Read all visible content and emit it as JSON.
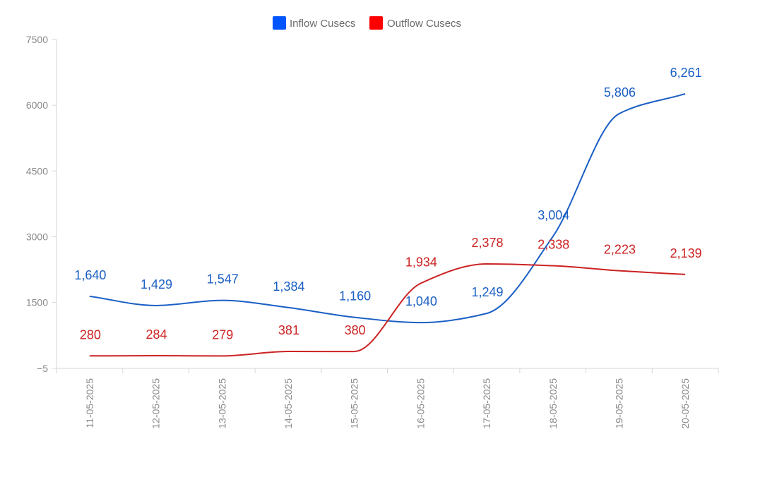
{
  "chart_data": {
    "type": "line",
    "categories": [
      "11-05-2025",
      "12-05-2025",
      "13-05-2025",
      "14-05-2025",
      "15-05-2025",
      "16-05-2025",
      "17-05-2025",
      "18-05-2025",
      "19-05-2025",
      "20-05-2025"
    ],
    "series": [
      {
        "name": "Inflow Cusecs",
        "color": "#1a5fc4",
        "legend_color": "#0055ff",
        "values": [
          1640,
          1429,
          1547,
          1384,
          1160,
          1040,
          1249,
          3004,
          5806,
          6261
        ],
        "labels": [
          "1,640",
          "1,429",
          "1,547",
          "1,384",
          "1,160",
          "1,040",
          "1,249",
          "3,004",
          "5,806",
          "6,261"
        ]
      },
      {
        "name": "Outflow Cusecs",
        "color": "#cc2222",
        "legend_color": "#ff0000",
        "values": [
          280,
          284,
          279,
          381,
          380,
          1934,
          2378,
          2338,
          2223,
          2139
        ],
        "labels": [
          "280",
          "284",
          "279",
          "381",
          "380",
          "1,934",
          "2,378",
          "2,338",
          "2,223",
          "2,139"
        ]
      }
    ],
    "y_ticks": [
      -5,
      1500,
      3000,
      4500,
      6000,
      7500
    ],
    "y_tick_labels": [
      "−5",
      "1500",
      "3000",
      "4500",
      "6000",
      "7500"
    ],
    "ylim": [
      -5,
      7500
    ],
    "legend_position": "top-center",
    "grid": false
  }
}
